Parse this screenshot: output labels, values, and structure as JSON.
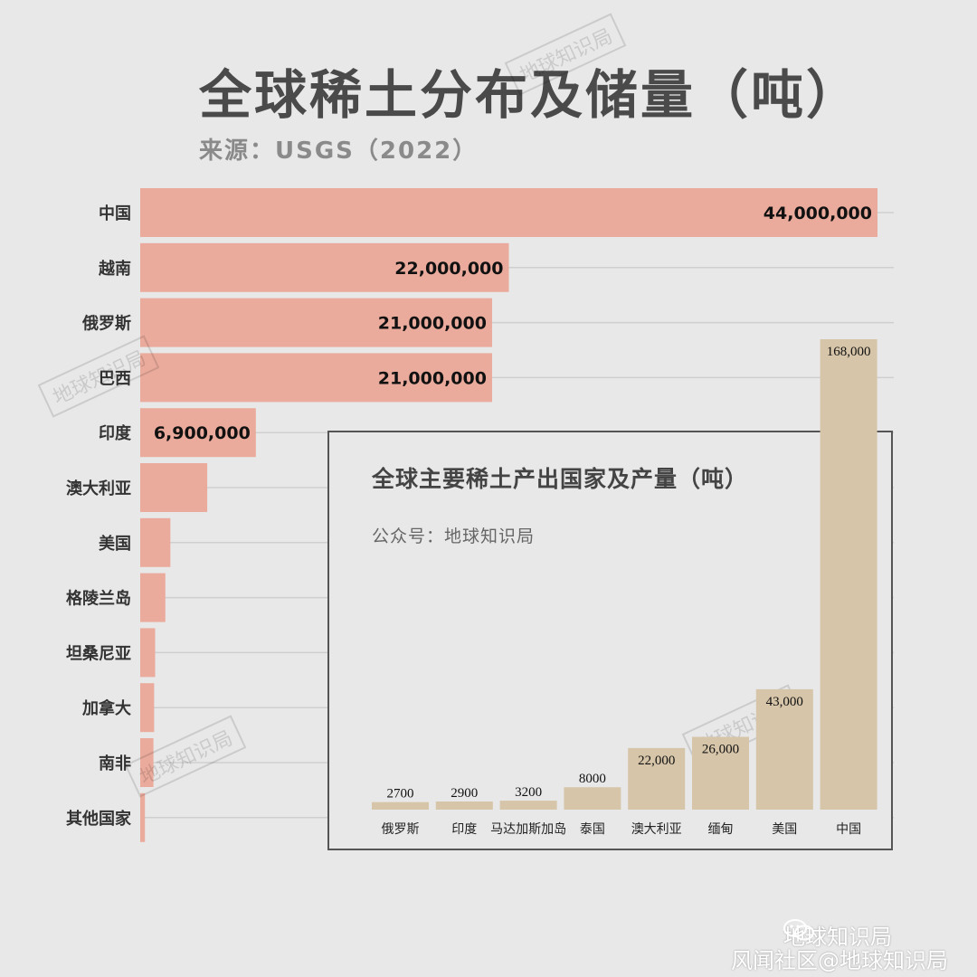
{
  "title": "全球稀土分布及储量（吨）",
  "subtitle": "来源：USGS（2022）",
  "chart_data": [
    {
      "type": "bar",
      "orientation": "horizontal",
      "title": "全球稀土分布及储量（吨）",
      "subtitle": "来源：USGS（2022）",
      "categories": [
        "中国",
        "越南",
        "俄罗斯",
        "巴西",
        "印度",
        "澳大利亚",
        "美国",
        "格陵兰岛",
        "坦桑尼亚",
        "加拿大",
        "南非",
        "其他国家"
      ],
      "values": [
        44000000,
        22000000,
        21000000,
        21000000,
        6900000,
        4000000,
        1800000,
        1500000,
        890000,
        830000,
        790000,
        280000
      ],
      "value_labels": [
        "44,000,000",
        "22,000,000",
        "21,000,000",
        "21,000,000",
        "6,900,000",
        "",
        "",
        "",
        "",
        "",
        "",
        ""
      ],
      "xlim": [
        0,
        44000000
      ],
      "grid": true,
      "color": "#eaab9c"
    },
    {
      "type": "bar",
      "orientation": "vertical",
      "title": "全球主要稀土产出国家及产量（吨）",
      "subtitle": "公众号：地球知识局",
      "categories": [
        "俄罗斯",
        "印度",
        "马达加斯加岛",
        "泰国",
        "澳大利亚",
        "缅甸",
        "美国",
        "中国"
      ],
      "values": [
        2700,
        2900,
        3200,
        8000,
        22000,
        26000,
        43000,
        168000
      ],
      "value_labels": [
        "2700",
        "2900",
        "3200",
        "8000",
        "22,000",
        "26,000",
        "43,000",
        "168,000"
      ],
      "ylim": [
        0,
        168000
      ],
      "color": "#d6c5a8"
    }
  ],
  "watermark": "地球知识局",
  "footer": {
    "wechat_account": "地球知识局",
    "credit": "风闻社区@地球知识局"
  }
}
